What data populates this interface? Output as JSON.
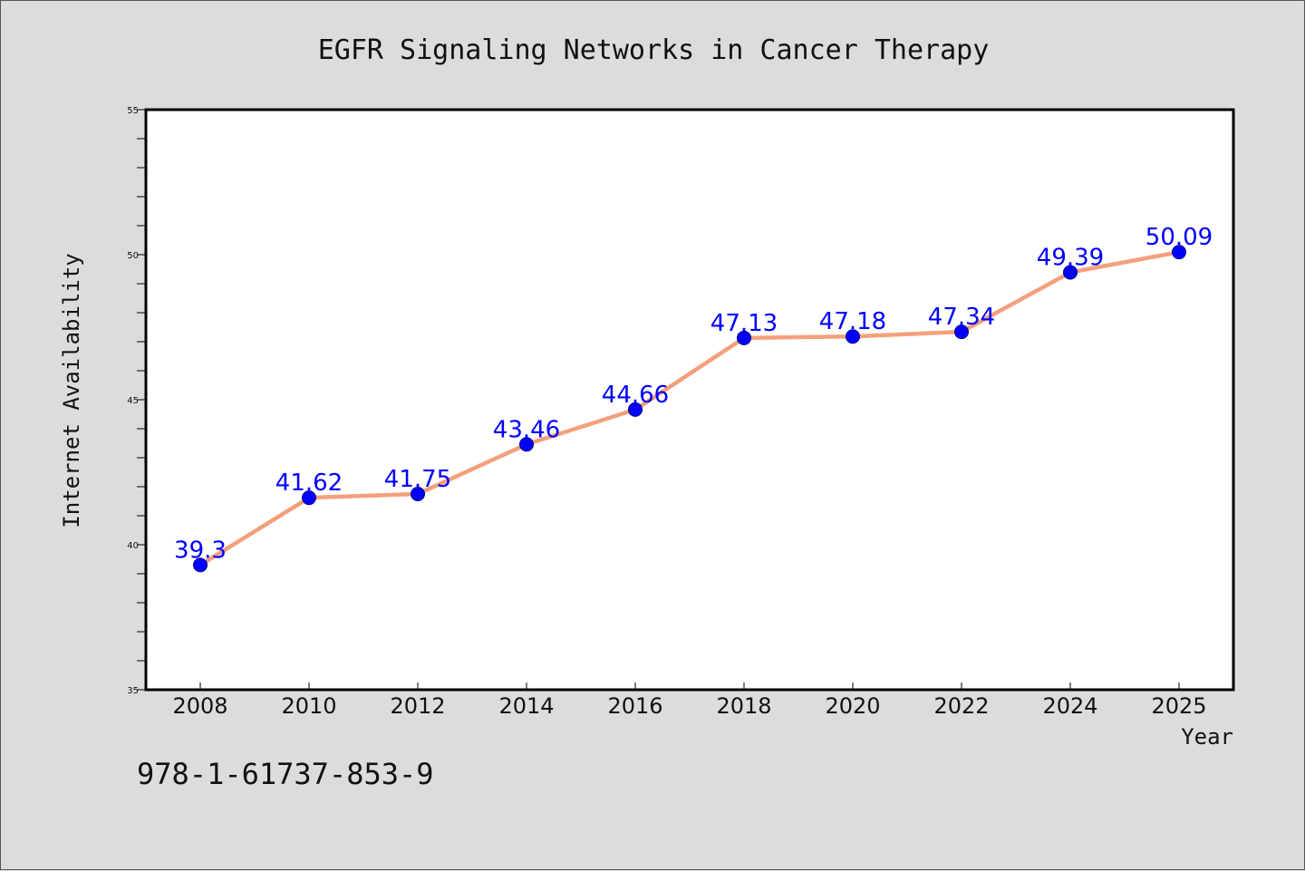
{
  "chart_data": {
    "type": "line",
    "title": "EGFR Signaling Networks in Cancer Therapy",
    "xlabel": "Year",
    "ylabel": "Internet Availability",
    "categories": [
      "2008",
      "2010",
      "2012",
      "2014",
      "2016",
      "2018",
      "2020",
      "2022",
      "2024",
      "2025"
    ],
    "series": [
      {
        "values": [
          39.3,
          41.62,
          41.75,
          43.46,
          44.66,
          47.13,
          47.18,
          47.34,
          49.39,
          50.09
        ],
        "labels": [
          "39.3",
          "41.62",
          "41.75",
          "43.46",
          "44.66",
          "47.13",
          "47.18",
          "47.34",
          "49.39",
          "50.09"
        ],
        "line_color": "#f4a07c",
        "marker_color": "#0000ff"
      }
    ],
    "ylim": [
      35,
      55
    ],
    "yticks": [
      "35",
      "40",
      "45",
      "50",
      "55"
    ],
    "grid": false,
    "legend": "none"
  },
  "annotation": "978-1-61737-853-9",
  "colors": {
    "background": "#dcdcdc",
    "plot_background": "#ffffff",
    "label_color": "#0000ff"
  }
}
